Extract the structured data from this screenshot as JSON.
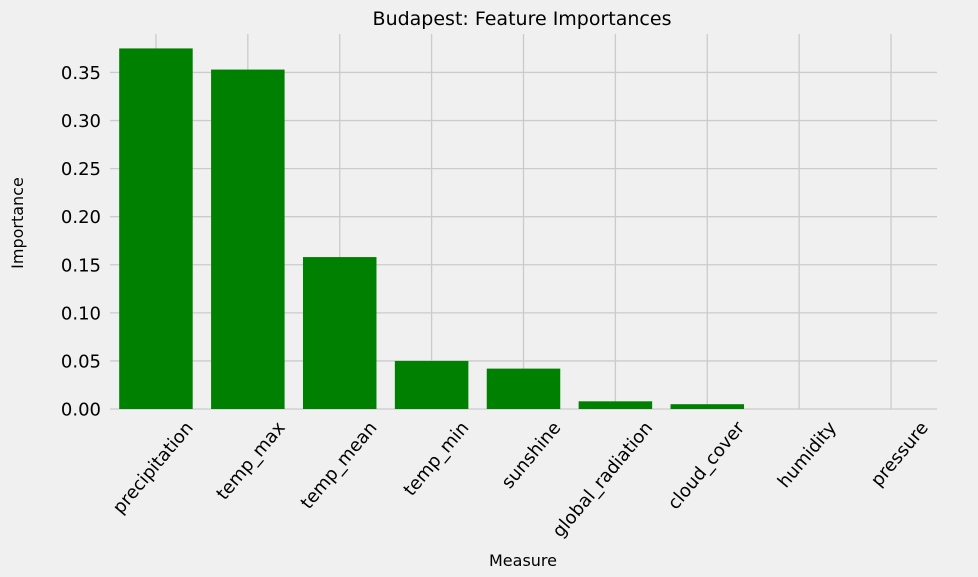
{
  "chart_data": {
    "type": "bar",
    "title": "Budapest: Feature Importances",
    "xlabel": "Measure",
    "ylabel": "Importance",
    "categories": [
      "precipitation",
      "temp_max",
      "temp_mean",
      "temp_min",
      "sunshine",
      "global_radiation",
      "cloud_cover",
      "humidity",
      "pressure"
    ],
    "values": [
      0.375,
      0.353,
      0.158,
      0.05,
      0.042,
      0.008,
      0.005,
      0.0,
      0.0
    ],
    "yticks": [
      "0.00",
      "0.05",
      "0.10",
      "0.15",
      "0.20",
      "0.25",
      "0.30",
      "0.35"
    ],
    "ylim": [
      0,
      0.39
    ],
    "grid": true,
    "bar_color": "#008000",
    "background_color": "#f0f0f0",
    "grid_color": "#cbcbcb"
  }
}
